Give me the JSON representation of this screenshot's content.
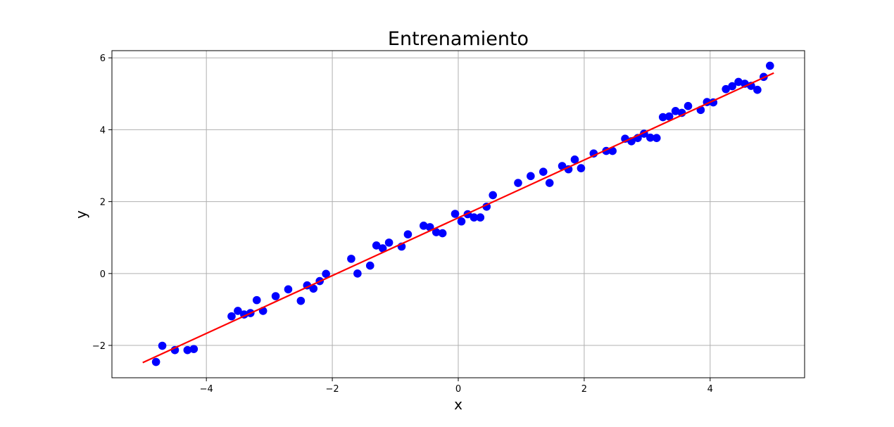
{
  "chart_data": {
    "type": "scatter",
    "title": "Entrenamiento",
    "xlabel": "x",
    "ylabel": "y",
    "xlim": [
      -5.5,
      5.5
    ],
    "ylim": [
      -2.9,
      6.2
    ],
    "xticks": [
      {
        "value": -4,
        "label": "−4"
      },
      {
        "value": -2,
        "label": "−2"
      },
      {
        "value": 0,
        "label": "0"
      },
      {
        "value": 2,
        "label": "2"
      },
      {
        "value": 4,
        "label": "4"
      }
    ],
    "yticks": [
      {
        "value": -2,
        "label": "−2"
      },
      {
        "value": 0,
        "label": "0"
      },
      {
        "value": 2,
        "label": "2"
      },
      {
        "value": 4,
        "label": "4"
      },
      {
        "value": 6,
        "label": "6"
      }
    ],
    "grid": true,
    "series": [
      {
        "kind": "scatter",
        "color": "#0000ff",
        "points": [
          [
            -4.8,
            -2.46
          ],
          [
            -4.7,
            -2.01
          ],
          [
            -4.5,
            -2.13
          ],
          [
            -4.3,
            -2.13
          ],
          [
            -4.2,
            -2.1
          ],
          [
            -3.6,
            -1.19
          ],
          [
            -3.5,
            -1.04
          ],
          [
            -3.4,
            -1.14
          ],
          [
            -3.3,
            -1.1
          ],
          [
            -3.2,
            -0.74
          ],
          [
            -3.1,
            -1.04
          ],
          [
            -2.9,
            -0.63
          ],
          [
            -2.7,
            -0.44
          ],
          [
            -2.5,
            -0.76
          ],
          [
            -2.4,
            -0.33
          ],
          [
            -2.3,
            -0.42
          ],
          [
            -2.2,
            -0.21
          ],
          [
            -2.1,
            -0.01
          ],
          [
            -1.7,
            0.41
          ],
          [
            -1.6,
            0.0
          ],
          [
            -1.4,
            0.22
          ],
          [
            -1.3,
            0.78
          ],
          [
            -1.2,
            0.7
          ],
          [
            -1.1,
            0.86
          ],
          [
            -0.9,
            0.75
          ],
          [
            -0.8,
            1.09
          ],
          [
            -0.55,
            1.33
          ],
          [
            -0.45,
            1.29
          ],
          [
            -0.35,
            1.15
          ],
          [
            -0.25,
            1.12
          ],
          [
            -0.05,
            1.66
          ],
          [
            0.05,
            1.45
          ],
          [
            0.15,
            1.65
          ],
          [
            0.25,
            1.56
          ],
          [
            0.35,
            1.56
          ],
          [
            0.45,
            1.86
          ],
          [
            0.55,
            2.18
          ],
          [
            0.95,
            2.52
          ],
          [
            1.15,
            2.71
          ],
          [
            1.35,
            2.83
          ],
          [
            1.45,
            2.52
          ],
          [
            1.65,
            2.99
          ],
          [
            1.75,
            2.9
          ],
          [
            1.85,
            3.17
          ],
          [
            1.95,
            2.93
          ],
          [
            2.15,
            3.34
          ],
          [
            2.35,
            3.41
          ],
          [
            2.45,
            3.41
          ],
          [
            2.65,
            3.75
          ],
          [
            2.75,
            3.68
          ],
          [
            2.85,
            3.77
          ],
          [
            2.95,
            3.89
          ],
          [
            3.05,
            3.78
          ],
          [
            3.15,
            3.77
          ],
          [
            3.25,
            4.35
          ],
          [
            3.35,
            4.37
          ],
          [
            3.45,
            4.52
          ],
          [
            3.55,
            4.47
          ],
          [
            3.65,
            4.66
          ],
          [
            3.85,
            4.55
          ],
          [
            3.95,
            4.77
          ],
          [
            4.05,
            4.76
          ],
          [
            4.25,
            5.13
          ],
          [
            4.35,
            5.21
          ],
          [
            4.45,
            5.33
          ],
          [
            4.55,
            5.28
          ],
          [
            4.65,
            5.22
          ],
          [
            4.75,
            5.11
          ],
          [
            4.85,
            5.47
          ],
          [
            4.95,
            5.78
          ]
        ]
      },
      {
        "kind": "line",
        "color": "#ff0000",
        "points": [
          [
            -5.0,
            -2.47
          ],
          [
            5.0,
            5.57
          ]
        ]
      }
    ]
  }
}
